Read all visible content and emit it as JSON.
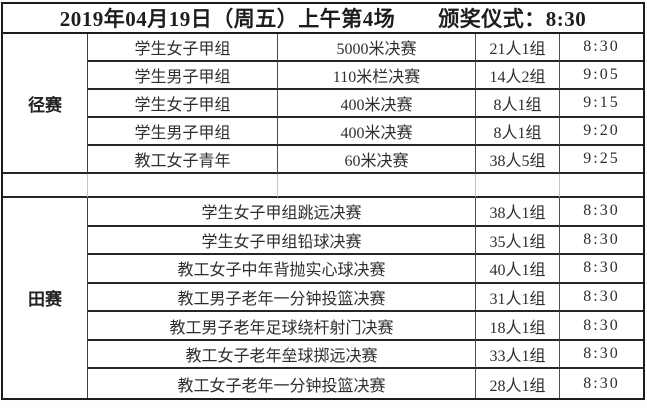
{
  "title": "2019年04月19日（周五）上午第4场　　颁奖仪式：8:30",
  "colors": {
    "border": "#1c1c1c",
    "text": "#2e2e2e",
    "background": "#ffffff"
  },
  "track": {
    "category": "径赛",
    "rows": [
      {
        "group": "学生女子甲组",
        "event": "5000米决赛",
        "people": "21人1组",
        "time": "8:30"
      },
      {
        "group": "学生男子甲组",
        "event": "110米栏决赛",
        "people": "14人2组",
        "time": "9:05"
      },
      {
        "group": "学生女子甲组",
        "event": "400米决赛",
        "people": "8人1组",
        "time": "9:15"
      },
      {
        "group": "学生男子甲组",
        "event": "400米决赛",
        "people": "8人1组",
        "time": "9:20"
      },
      {
        "group": "教工女子青年",
        "event": "60米决赛",
        "people": "38人5组",
        "time": "9:25"
      }
    ]
  },
  "field": {
    "category": "田赛",
    "rows": [
      {
        "event": "学生女子甲组跳远决赛",
        "people": "38人1组",
        "time": "8:30"
      },
      {
        "event": "学生女子甲组铅球决赛",
        "people": "35人1组",
        "time": "8:30"
      },
      {
        "event": "教工女子中年背抛实心球决赛",
        "people": "40人1组",
        "time": "8:30"
      },
      {
        "event": "教工男子老年一分钟投篮决赛",
        "people": "31人1组",
        "time": "8:30"
      },
      {
        "event": "教工男子老年足球绕杆射门决赛",
        "people": "18人1组",
        "time": "8:30"
      },
      {
        "event": "教工女子老年垒球掷远决赛",
        "people": "33人1组",
        "time": "8:30"
      },
      {
        "event": "教工女子老年一分钟投篮决赛",
        "people": "28人1组",
        "time": "8:30"
      }
    ]
  }
}
